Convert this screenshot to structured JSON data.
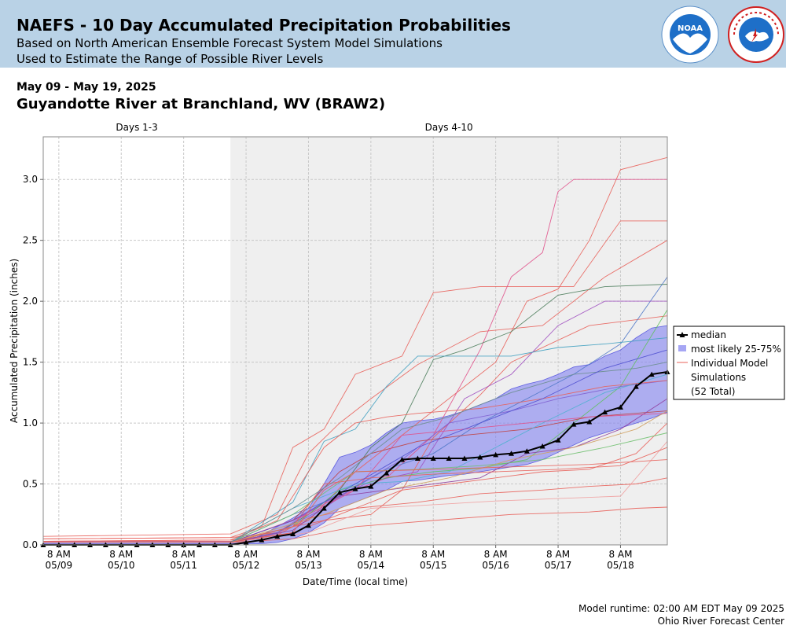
{
  "header": {
    "title": "NAEFS - 10 Day Accumulated Precipitation Probabilities",
    "subtitle1": "Based on North American Ensemble Forecast System Model Simulations",
    "subtitle2": "Used to Estimate the Range of Possible River Levels",
    "logo_noaa_text": "NOAA",
    "logo_nws_text": "NATIONAL WEATHER SERVICE"
  },
  "date_range": "May 09 - May 19, 2025",
  "station": "Guyandotte River at Branchland, WV (BRAW2)",
  "footer": {
    "runtime": "Model runtime: 02:00 AM EDT May 09 2025",
    "center": "Ohio River Forecast Center"
  },
  "colors": {
    "banner": "#b9d2e6",
    "band_fill": "#8080f0",
    "median": "#000000",
    "days4_10_bg": "#efefef"
  },
  "chart_data": {
    "type": "line",
    "xlabel": "Date/Time (local time)",
    "ylabel": "Accumulated Precipitation (inches)",
    "ylim": [
      0,
      3.35
    ],
    "yticks": [
      "0.0",
      "0.5",
      "1.0",
      "1.5",
      "2.0",
      "2.5",
      "3.0"
    ],
    "xlim": [
      "05/09 02:00",
      "05/19 02:00"
    ],
    "xticks": [
      {
        "top": "8 AM",
        "bottom": "05/09"
      },
      {
        "top": "8 AM",
        "bottom": "05/10"
      },
      {
        "top": "8 AM",
        "bottom": "05/11"
      },
      {
        "top": "8 AM",
        "bottom": "05/12"
      },
      {
        "top": "8 AM",
        "bottom": "05/13"
      },
      {
        "top": "8 AM",
        "bottom": "05/14"
      },
      {
        "top": "8 AM",
        "bottom": "05/15"
      },
      {
        "top": "8 AM",
        "bottom": "05/16"
      },
      {
        "top": "8 AM",
        "bottom": "05/17"
      },
      {
        "top": "8 AM",
        "bottom": "05/18"
      }
    ],
    "periods": [
      {
        "label": "Days 1-3",
        "start_hours": 0,
        "end_hours": 72
      },
      {
        "label": "Days 4-10",
        "start_hours": 72,
        "end_hours": 240
      }
    ],
    "grid": true,
    "legend_position": "right",
    "legend": {
      "median": "median",
      "band": "most likely 25-75%",
      "members_line1": "Individual Model",
      "members_line2": "Simulations",
      "members_line3": "(52 Total)"
    },
    "median": {
      "name": "median",
      "step_hours": 6,
      "values": [
        0,
        0,
        0,
        0,
        0,
        0,
        0,
        0,
        0,
        0,
        0,
        0,
        0,
        0.02,
        0.04,
        0.07,
        0.09,
        0.16,
        0.3,
        0.43,
        0.46,
        0.48,
        0.59,
        0.7,
        0.71,
        0.71,
        0.71,
        0.71,
        0.72,
        0.74,
        0.75,
        0.77,
        0.81,
        0.86,
        0.99,
        1.01,
        1.09,
        1.13,
        1.3,
        1.4,
        1.42
      ]
    },
    "band_25_75": {
      "name": "most likely 25-75%",
      "hours": [
        0,
        54,
        60,
        66,
        72,
        78,
        84,
        90,
        96,
        102,
        108,
        114,
        120,
        126,
        132,
        138,
        144,
        150,
        156,
        162,
        168,
        174,
        180,
        186,
        192,
        198,
        204,
        210,
        216,
        222,
        228,
        234,
        240
      ],
      "lower": [
        0.01,
        0.01,
        0.01,
        0.01,
        0.01,
        0.01,
        0.01,
        0.02,
        0.05,
        0.1,
        0.18,
        0.3,
        0.35,
        0.4,
        0.45,
        0.52,
        0.53,
        0.55,
        0.57,
        0.58,
        0.6,
        0.62,
        0.64,
        0.66,
        0.7,
        0.76,
        0.82,
        0.88,
        0.92,
        0.96,
        1.0,
        1.04,
        1.09
      ],
      "upper": [
        0.03,
        0.03,
        0.03,
        0.03,
        0.03,
        0.03,
        0.08,
        0.15,
        0.22,
        0.3,
        0.5,
        0.72,
        0.76,
        0.82,
        0.92,
        1.0,
        1.02,
        1.03,
        1.06,
        1.1,
        1.15,
        1.2,
        1.28,
        1.32,
        1.35,
        1.4,
        1.46,
        1.48,
        1.55,
        1.6,
        1.7,
        1.78,
        1.8
      ]
    },
    "members": [
      {
        "color": "#e8605a",
        "hours": [
          0,
          72,
          90,
          102,
          114,
          126,
          144,
          168,
          192,
          216,
          240
        ],
        "values": [
          0.07,
          0.09,
          0.25,
          0.75,
          1.0,
          1.2,
          1.48,
          1.75,
          1.8,
          2.2,
          2.5
        ]
      },
      {
        "color": "#e8605a",
        "hours": [
          0,
          72,
          84,
          96,
          108,
          120,
          138,
          150,
          168,
          186,
          204,
          222,
          240
        ],
        "values": [
          0.05,
          0.06,
          0.15,
          0.8,
          0.95,
          1.4,
          1.55,
          2.07,
          2.12,
          2.12,
          2.12,
          2.66,
          2.66
        ]
      },
      {
        "color": "#e8605a",
        "hours": [
          0,
          72,
          90,
          102,
          120,
          138,
          156,
          174,
          186,
          198,
          210,
          222,
          240
        ],
        "values": [
          0.05,
          0.06,
          0.1,
          0.2,
          0.6,
          0.9,
          1.2,
          1.5,
          2.0,
          2.1,
          2.5,
          3.08,
          3.18
        ]
      },
      {
        "color": "#e0508a",
        "hours": [
          0,
          72,
          96,
          114,
          132,
          150,
          168,
          180,
          192,
          198,
          204,
          210,
          240
        ],
        "values": [
          0.02,
          0.02,
          0.2,
          0.4,
          0.55,
          0.9,
          1.6,
          2.2,
          2.4,
          2.9,
          3.0,
          3.0,
          3.0
        ]
      },
      {
        "color": "#e8605a",
        "hours": [
          0,
          72,
          96,
          108,
          126,
          138,
          150,
          168,
          180,
          210,
          240
        ],
        "values": [
          0.03,
          0.03,
          0.15,
          0.2,
          0.25,
          0.45,
          0.88,
          1.23,
          1.5,
          1.8,
          1.88
        ]
      },
      {
        "color": "#4d7d5c",
        "hours": [
          0,
          72,
          90,
          102,
          114,
          126,
          138,
          150,
          162,
          180,
          198,
          216,
          240
        ],
        "values": [
          0.02,
          0.02,
          0.1,
          0.25,
          0.45,
          0.8,
          1.0,
          1.52,
          1.6,
          1.75,
          2.05,
          2.12,
          2.14
        ]
      },
      {
        "color": "#5078c8",
        "hours": [
          0,
          72,
          96,
          114,
          132,
          150,
          168,
          186,
          204,
          222,
          240
        ],
        "values": [
          0.02,
          0.02,
          0.25,
          0.4,
          0.62,
          0.75,
          1.0,
          1.2,
          1.4,
          1.65,
          2.2
        ]
      },
      {
        "color": "#a050c0",
        "hours": [
          0,
          72,
          90,
          108,
          126,
          144,
          162,
          180,
          198,
          216,
          240
        ],
        "values": [
          0.02,
          0.02,
          0.1,
          0.35,
          0.52,
          0.6,
          1.2,
          1.4,
          1.8,
          2.0,
          2.0
        ]
      },
      {
        "color": "#40a0c0",
        "hours": [
          0,
          72,
          96,
          108,
          120,
          132,
          144,
          162,
          180,
          198,
          216,
          240
        ],
        "values": [
          0.02,
          0.02,
          0.35,
          0.85,
          0.95,
          1.3,
          1.55,
          1.55,
          1.55,
          1.62,
          1.65,
          1.7
        ]
      },
      {
        "color": "#60c060",
        "hours": [
          0,
          72,
          96,
          114,
          132,
          150,
          168,
          186,
          204,
          222,
          240
        ],
        "values": [
          0.02,
          0.02,
          0.15,
          0.45,
          0.55,
          0.6,
          0.63,
          0.7,
          1.0,
          1.3,
          1.93
        ]
      },
      {
        "color": "#e8605a",
        "hours": [
          0,
          72,
          90,
          102,
          120,
          138,
          156,
          174,
          192,
          210,
          228,
          240
        ],
        "values": [
          0.03,
          0.04,
          0.08,
          0.22,
          0.3,
          0.45,
          0.5,
          0.55,
          0.6,
          0.62,
          0.75,
          1.0
        ]
      },
      {
        "color": "#e8605a",
        "hours": [
          0,
          72,
          96,
          120,
          144,
          168,
          192,
          210,
          228,
          240
        ],
        "values": [
          0.02,
          0.02,
          0.1,
          0.3,
          0.35,
          0.42,
          0.45,
          0.48,
          0.5,
          0.55
        ]
      },
      {
        "color": "#e8605a",
        "hours": [
          0,
          72,
          96,
          120,
          150,
          180,
          210,
          228,
          240
        ],
        "values": [
          0.02,
          0.02,
          0.05,
          0.15,
          0.2,
          0.25,
          0.27,
          0.3,
          0.31
        ]
      },
      {
        "color": "#f0a0a0",
        "hours": [
          0,
          72,
          102,
          126,
          150,
          174,
          198,
          222,
          240
        ],
        "values": [
          0.02,
          0.02,
          0.1,
          0.3,
          0.33,
          0.36,
          0.38,
          0.4,
          0.85
        ]
      },
      {
        "color": "#8060d0",
        "hours": [
          0,
          72,
          90,
          108,
          120,
          138,
          156,
          180,
          198,
          222,
          240
        ],
        "values": [
          0.02,
          0.02,
          0.1,
          0.3,
          0.48,
          0.7,
          1.0,
          1.1,
          1.2,
          1.3,
          1.35
        ]
      },
      {
        "color": "#c04040",
        "hours": [
          0,
          72,
          96,
          114,
          126,
          144,
          162,
          186,
          210,
          240
        ],
        "values": [
          0.02,
          0.02,
          0.2,
          0.6,
          0.75,
          0.85,
          0.9,
          0.95,
          1.05,
          1.1
        ]
      },
      {
        "color": "#50b0d0",
        "hours": [
          0,
          72,
          96,
          120,
          138,
          156,
          174,
          192,
          216,
          240
        ],
        "values": [
          0.02,
          0.02,
          0.3,
          0.5,
          0.52,
          0.6,
          0.8,
          1.0,
          1.25,
          1.4
        ]
      },
      {
        "color": "#9040a0",
        "hours": [
          0,
          72,
          96,
          114,
          132,
          150,
          168,
          186,
          204,
          222,
          240
        ],
        "values": [
          0.02,
          0.02,
          0.12,
          0.4,
          0.45,
          0.5,
          0.55,
          0.75,
          0.8,
          0.95,
          1.2
        ]
      },
      {
        "color": "#70c070",
        "hours": [
          0,
          72,
          96,
          120,
          144,
          168,
          192,
          216,
          240
        ],
        "values": [
          0.02,
          0.02,
          0.25,
          0.6,
          0.62,
          0.65,
          0.7,
          0.8,
          0.92
        ]
      },
      {
        "color": "#e8605a",
        "hours": [
          0,
          72,
          90,
          108,
          120,
          132,
          144,
          168,
          192,
          216,
          240
        ],
        "values": [
          0.03,
          0.04,
          0.2,
          0.8,
          1.0,
          1.05,
          1.08,
          1.12,
          1.2,
          1.3,
          1.35
        ]
      },
      {
        "color": "#e8605a",
        "hours": [
          0,
          72,
          96,
          108,
          126,
          150,
          174,
          198,
          222,
          240
        ],
        "values": [
          0.02,
          0.02,
          0.15,
          0.5,
          0.55,
          0.58,
          0.6,
          0.62,
          0.65,
          0.8
        ]
      },
      {
        "color": "#e0508a",
        "hours": [
          0,
          72,
          102,
          120,
          138,
          162,
          186,
          210,
          240
        ],
        "values": [
          0.02,
          0.02,
          0.25,
          0.45,
          0.9,
          0.95,
          1.0,
          1.05,
          1.08
        ]
      },
      {
        "color": "#6b8e8e",
        "hours": [
          0,
          72,
          96,
          114,
          138,
          156,
          180,
          204,
          228,
          240
        ],
        "values": [
          0.02,
          0.02,
          0.3,
          0.55,
          0.95,
          1.05,
          1.25,
          1.4,
          1.45,
          1.5
        ]
      },
      {
        "color": "#5050d0",
        "hours": [
          0,
          72,
          96,
          120,
          144,
          168,
          192,
          216,
          240
        ],
        "values": [
          0.02,
          0.02,
          0.2,
          0.5,
          0.8,
          1.0,
          1.2,
          1.45,
          1.6
        ]
      },
      {
        "color": "#d0a060",
        "hours": [
          0,
          72,
          108,
          132,
          156,
          180,
          204,
          228,
          240
        ],
        "values": [
          0.02,
          0.02,
          0.25,
          0.45,
          0.55,
          0.7,
          0.8,
          0.95,
          1.1
        ]
      },
      {
        "color": "#e8605a",
        "hours": [
          0,
          72,
          96,
          108,
          120,
          150,
          180,
          210,
          240
        ],
        "values": [
          0.02,
          0.02,
          0.1,
          0.45,
          0.6,
          0.62,
          0.64,
          0.66,
          0.7
        ]
      }
    ]
  }
}
